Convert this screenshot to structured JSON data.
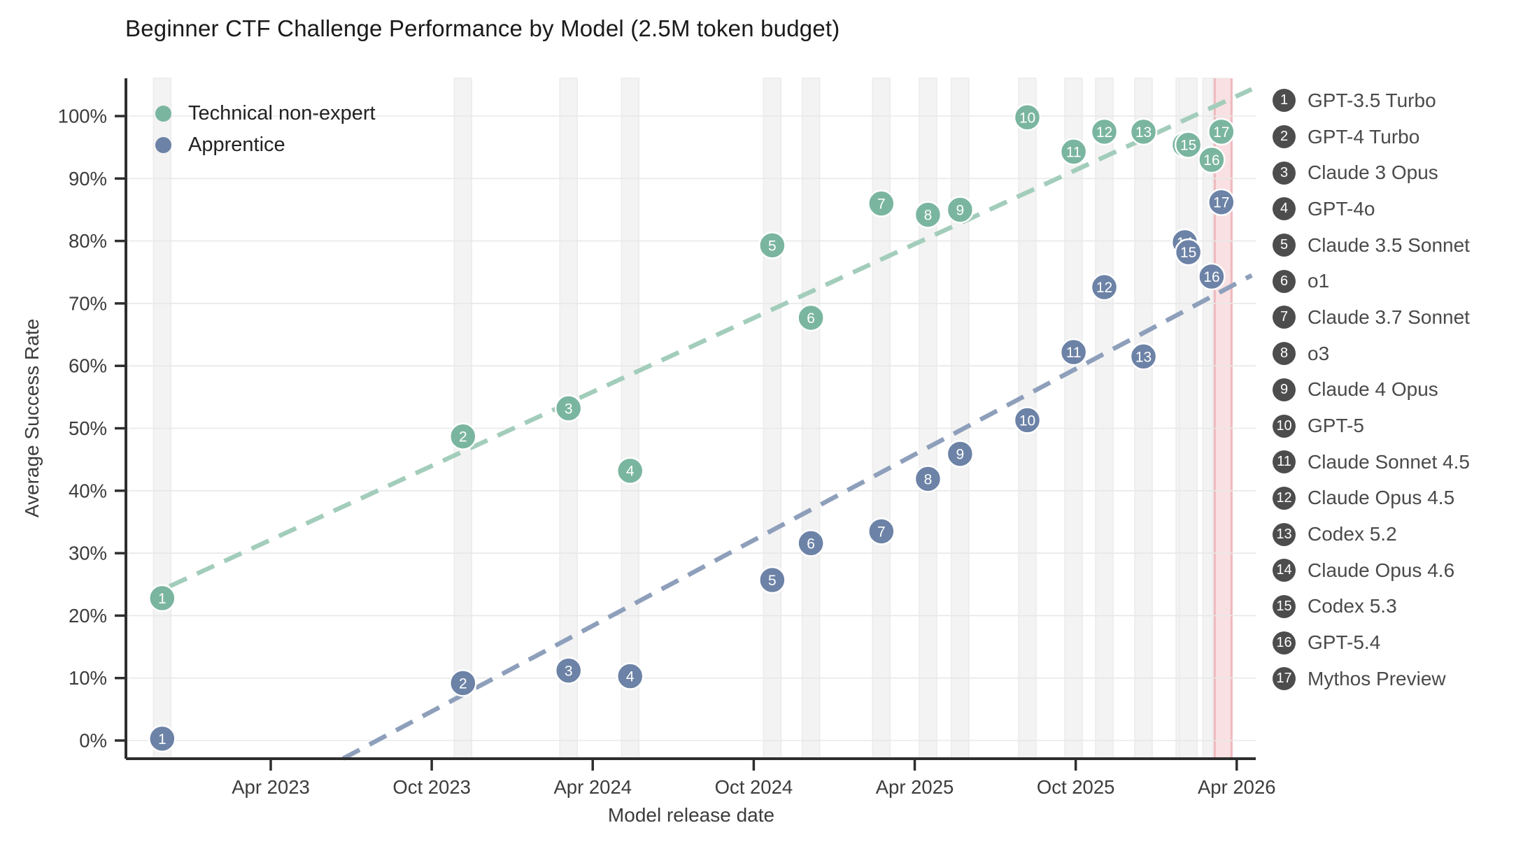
{
  "chart_data": {
    "type": "scatter",
    "title": "Beginner CTF Challenge Performance by Model (2.5M token budget)",
    "xlabel": "Model release date",
    "ylabel": "Average Success Rate",
    "grid": "horizontal",
    "legend_position": "upper-left",
    "ylim": [
      -3,
      106
    ],
    "x_ticks": [
      {
        "date": "2023-04-01",
        "label": "Apr 2023"
      },
      {
        "date": "2023-10-01",
        "label": "Oct 2023"
      },
      {
        "date": "2024-04-01",
        "label": "Apr 2024"
      },
      {
        "date": "2024-10-01",
        "label": "Oct 2024"
      },
      {
        "date": "2025-04-01",
        "label": "Apr 2025"
      },
      {
        "date": "2025-10-01",
        "label": "Oct 2025"
      },
      {
        "date": "2026-04-01",
        "label": "Apr 2026"
      }
    ],
    "y_ticks": [
      {
        "value": 0,
        "label": "0%"
      },
      {
        "value": 10,
        "label": "10%"
      },
      {
        "value": 20,
        "label": "20%"
      },
      {
        "value": 30,
        "label": "30%"
      },
      {
        "value": 40,
        "label": "40%"
      },
      {
        "value": 50,
        "label": "50%"
      },
      {
        "value": 60,
        "label": "60%"
      },
      {
        "value": 70,
        "label": "70%"
      },
      {
        "value": 80,
        "label": "80%"
      },
      {
        "value": 90,
        "label": "90%"
      },
      {
        "value": 100,
        "label": "100%"
      }
    ],
    "models": [
      {
        "id": 1,
        "name": "GPT-3.5 Turbo",
        "release_date": "2022-11-30"
      },
      {
        "id": 2,
        "name": "GPT-4 Turbo",
        "release_date": "2023-11-06"
      },
      {
        "id": 3,
        "name": "Claude 3 Opus",
        "release_date": "2024-03-04"
      },
      {
        "id": 4,
        "name": "GPT-4o",
        "release_date": "2024-05-13"
      },
      {
        "id": 5,
        "name": "Claude 3.5 Sonnet",
        "release_date": "2024-10-22"
      },
      {
        "id": 6,
        "name": "o1",
        "release_date": "2024-12-05"
      },
      {
        "id": 7,
        "name": "Claude 3.7 Sonnet",
        "release_date": "2025-02-24"
      },
      {
        "id": 8,
        "name": "o3",
        "release_date": "2025-04-16"
      },
      {
        "id": 9,
        "name": "Claude 4 Opus",
        "release_date": "2025-05-22"
      },
      {
        "id": 10,
        "name": "GPT-5",
        "release_date": "2025-08-07"
      },
      {
        "id": 11,
        "name": "Claude Sonnet 4.5",
        "release_date": "2025-09-29"
      },
      {
        "id": 12,
        "name": "Claude Opus 4.5",
        "release_date": "2025-11-03"
      },
      {
        "id": 13,
        "name": "Codex 5.2",
        "release_date": "2025-12-17"
      },
      {
        "id": 14,
        "name": "Claude Opus 4.6",
        "release_date": "2026-02-03"
      },
      {
        "id": 15,
        "name": "Codex 5.3",
        "release_date": "2026-02-07"
      },
      {
        "id": 16,
        "name": "GPT-5.4",
        "release_date": "2026-03-03"
      },
      {
        "id": 17,
        "name": "Mythos Preview",
        "release_date": "2026-03-14"
      }
    ],
    "series": [
      {
        "name": "Technical non-expert",
        "color": "#7ab5a0",
        "values": [
          22.8,
          48.7,
          53.2,
          43.2,
          79.3,
          67.7,
          86.0,
          84.2,
          85.0,
          99.8,
          94.3,
          97.5,
          97.5,
          95.4,
          95.4,
          93.0,
          97.5
        ]
      },
      {
        "name": "Apprentice",
        "color": "#6c82a6",
        "values": [
          0.3,
          9.2,
          11.2,
          10.3,
          25.7,
          31.6,
          33.5,
          41.9,
          45.9,
          51.3,
          62.2,
          72.6,
          61.5,
          79.8,
          78.2,
          74.3,
          86.2
        ]
      }
    ],
    "trend_lines": [
      {
        "series": "Technical non-expert",
        "color": "#a3cdbb",
        "from": {
          "date": "2022-12-08",
          "value": 24.7
        },
        "to": {
          "date": "2026-04-18",
          "value": 104.3
        }
      },
      {
        "series": "Apprentice",
        "color": "#8e9fbb",
        "from": {
          "date": "2023-06-22",
          "value": -2.9
        },
        "to": {
          "date": "2026-04-18",
          "value": 74.5
        }
      }
    ],
    "highlight_band": {
      "date": "2026-03-16"
    },
    "colors": {
      "release_band_fill": "#f3f3f3",
      "release_band_edge": "#ebebeb",
      "highlight_band_fill": "#f9e0e2",
      "highlight_band_edge": "#eeb8bd",
      "gridline": "#e8e8e8",
      "axis": "#2e2e2e",
      "tick_label": "#3c3c3c",
      "legend_badge": "#4d4d4d"
    }
  }
}
